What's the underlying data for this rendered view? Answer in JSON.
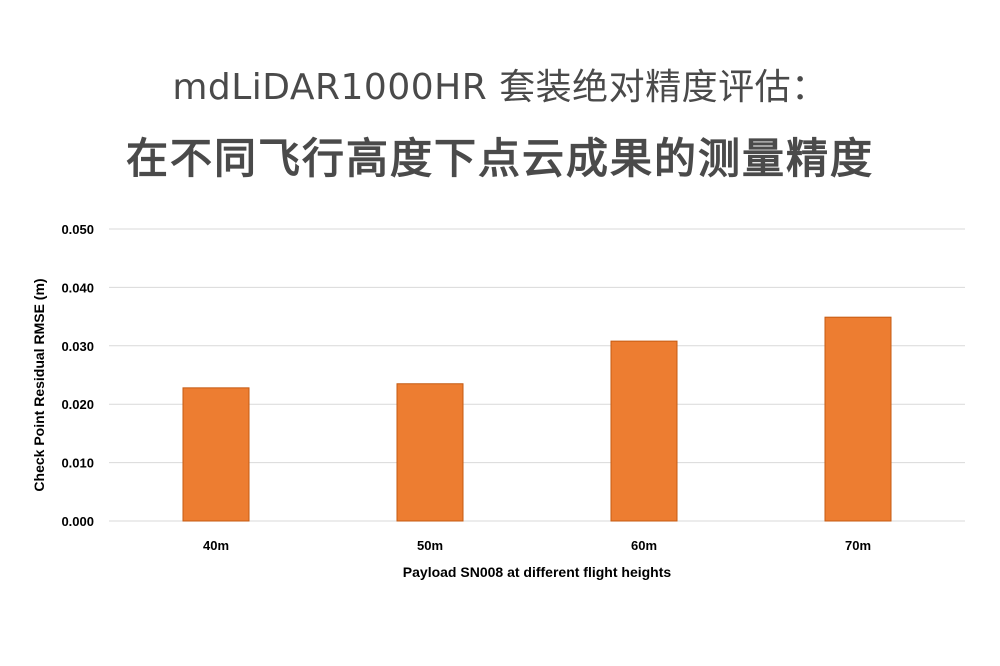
{
  "header": {
    "title_line1": "mdLiDAR1000HR 套装绝对精度评估：",
    "title_line2": "在不同飞行高度下点云成果的测量精度"
  },
  "colors": {
    "bar": "#ED7D31",
    "bar_edge": "#C55A11",
    "grid": "#D9D9D9",
    "text": "#000000",
    "title": "#4A4A4A"
  },
  "chart_data": {
    "type": "bar",
    "categories": [
      "40m",
      "50m",
      "60m",
      "70m"
    ],
    "values": [
      0.0228,
      0.0235,
      0.0308,
      0.0349
    ],
    "ylim": [
      0,
      0.05
    ],
    "yticks": [
      "0.000",
      "0.010",
      "0.020",
      "0.030",
      "0.040",
      "0.050"
    ],
    "xlabel": "Payload SN008 at different flight heights",
    "ylabel": "Check Point Residual RMSE (m)",
    "grid": true,
    "legend": "none"
  }
}
